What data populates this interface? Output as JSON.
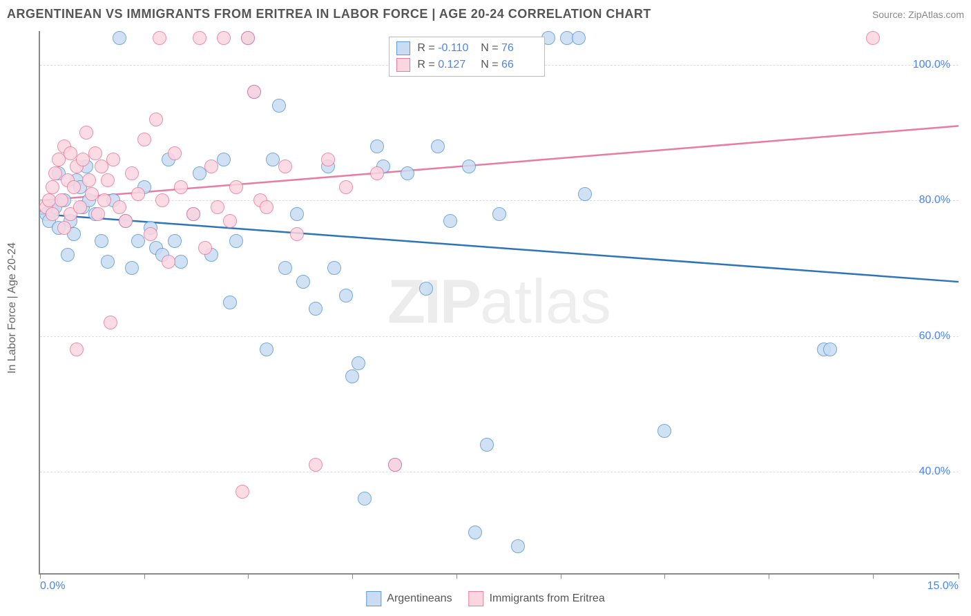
{
  "title": "ARGENTINEAN VS IMMIGRANTS FROM ERITREA IN LABOR FORCE | AGE 20-24 CORRELATION CHART",
  "source": "Source: ZipAtlas.com",
  "watermark": "ZIPatlas",
  "ylabel": "In Labor Force | Age 20-24",
  "chart": {
    "type": "scatter",
    "xlim": [
      0,
      15
    ],
    "ylim": [
      25,
      105
    ],
    "yticks": [
      40,
      60,
      80,
      100
    ],
    "ytick_labels": [
      "40.0%",
      "60.0%",
      "80.0%",
      "100.0%"
    ],
    "xtick_positions": [
      0,
      1.7,
      3.4,
      5.1,
      6.8,
      8.5,
      10.2,
      11.9,
      13.6,
      15
    ],
    "xlabels": {
      "0": "0.0%",
      "15": "15.0%"
    },
    "grid_color": "#dddddd",
    "axis_color": "#888888",
    "background_color": "#ffffff",
    "point_radius": 10,
    "point_stroke_width": 1.5,
    "line_width": 2.5,
    "series": [
      {
        "name": "Argentineans",
        "fill": "#c9dcf3",
        "stroke": "#5b9bd5",
        "line_color": "#2e75b6",
        "R": "-0.110",
        "N": "76",
        "trend": {
          "x1": 0,
          "y1": 78,
          "x2": 15,
          "y2": 68
        },
        "points": [
          [
            0.1,
            78
          ],
          [
            0.15,
            77
          ],
          [
            0.2,
            78.5
          ],
          [
            0.25,
            79
          ],
          [
            0.3,
            76
          ],
          [
            0.3,
            84
          ],
          [
            0.4,
            80
          ],
          [
            0.45,
            72
          ],
          [
            0.5,
            77
          ],
          [
            0.55,
            75
          ],
          [
            0.6,
            83
          ],
          [
            0.65,
            82
          ],
          [
            0.7,
            79
          ],
          [
            0.75,
            85
          ],
          [
            0.8,
            80
          ],
          [
            0.9,
            78
          ],
          [
            1.0,
            74
          ],
          [
            1.1,
            71
          ],
          [
            1.2,
            80
          ],
          [
            1.3,
            104
          ],
          [
            1.4,
            77
          ],
          [
            1.5,
            70
          ],
          [
            1.6,
            74
          ],
          [
            1.7,
            82
          ],
          [
            1.8,
            76
          ],
          [
            1.9,
            73
          ],
          [
            2.0,
            72
          ],
          [
            2.1,
            86
          ],
          [
            2.2,
            74
          ],
          [
            2.3,
            71
          ],
          [
            2.5,
            78
          ],
          [
            2.6,
            84
          ],
          [
            2.8,
            72
          ],
          [
            3.0,
            86
          ],
          [
            3.1,
            65
          ],
          [
            3.2,
            74
          ],
          [
            3.4,
            104
          ],
          [
            3.5,
            96
          ],
          [
            3.7,
            58
          ],
          [
            3.8,
            86
          ],
          [
            3.9,
            94
          ],
          [
            4.0,
            70
          ],
          [
            4.2,
            78
          ],
          [
            4.3,
            68
          ],
          [
            4.5,
            64
          ],
          [
            4.7,
            85
          ],
          [
            4.8,
            70
          ],
          [
            5.0,
            66
          ],
          [
            5.1,
            54
          ],
          [
            5.2,
            56
          ],
          [
            5.3,
            36
          ],
          [
            5.5,
            88
          ],
          [
            5.6,
            85
          ],
          [
            5.8,
            41
          ],
          [
            6.0,
            84
          ],
          [
            6.3,
            67
          ],
          [
            6.5,
            88
          ],
          [
            6.7,
            77
          ],
          [
            7.0,
            85
          ],
          [
            7.1,
            31
          ],
          [
            7.3,
            44
          ],
          [
            7.5,
            78
          ],
          [
            7.8,
            29
          ],
          [
            8.3,
            104
          ],
          [
            8.6,
            104
          ],
          [
            8.8,
            104
          ],
          [
            8.9,
            81
          ],
          [
            10.2,
            46
          ],
          [
            12.8,
            58
          ],
          [
            12.9,
            58
          ]
        ]
      },
      {
        "name": "Immigrants from Eritrea",
        "fill": "#fbd5e0",
        "stroke": "#e87ba3",
        "line_color": "#e87ba3",
        "R": "0.127",
        "N": "66",
        "trend": {
          "x1": 0,
          "y1": 80,
          "x2": 15,
          "y2": 91
        },
        "points": [
          [
            0.1,
            79
          ],
          [
            0.15,
            80
          ],
          [
            0.2,
            82
          ],
          [
            0.2,
            78
          ],
          [
            0.25,
            84
          ],
          [
            0.3,
            86
          ],
          [
            0.35,
            80
          ],
          [
            0.4,
            88
          ],
          [
            0.4,
            76
          ],
          [
            0.45,
            83
          ],
          [
            0.5,
            87
          ],
          [
            0.5,
            78
          ],
          [
            0.55,
            82
          ],
          [
            0.6,
            85
          ],
          [
            0.6,
            58
          ],
          [
            0.65,
            79
          ],
          [
            0.7,
            86
          ],
          [
            0.75,
            90
          ],
          [
            0.8,
            83
          ],
          [
            0.85,
            81
          ],
          [
            0.9,
            87
          ],
          [
            0.95,
            78
          ],
          [
            1.0,
            85
          ],
          [
            1.05,
            80
          ],
          [
            1.1,
            83
          ],
          [
            1.15,
            62
          ],
          [
            1.2,
            86
          ],
          [
            1.3,
            79
          ],
          [
            1.4,
            77
          ],
          [
            1.5,
            84
          ],
          [
            1.6,
            81
          ],
          [
            1.7,
            89
          ],
          [
            1.8,
            75
          ],
          [
            1.9,
            92
          ],
          [
            1.95,
            104
          ],
          [
            2.0,
            80
          ],
          [
            2.1,
            71
          ],
          [
            2.2,
            87
          ],
          [
            2.3,
            82
          ],
          [
            2.5,
            78
          ],
          [
            2.6,
            104
          ],
          [
            2.7,
            73
          ],
          [
            2.8,
            85
          ],
          [
            2.9,
            79
          ],
          [
            3.0,
            104
          ],
          [
            3.1,
            77
          ],
          [
            3.2,
            82
          ],
          [
            3.3,
            37
          ],
          [
            3.4,
            104
          ],
          [
            3.5,
            96
          ],
          [
            3.6,
            80
          ],
          [
            3.7,
            79
          ],
          [
            4.0,
            85
          ],
          [
            4.2,
            75
          ],
          [
            4.5,
            41
          ],
          [
            4.7,
            86
          ],
          [
            5.0,
            82
          ],
          [
            5.5,
            84
          ],
          [
            5.8,
            41
          ],
          [
            13.6,
            104
          ]
        ]
      }
    ]
  },
  "bottom_legend": [
    {
      "label": "Argentineans",
      "fill": "#c9dcf3",
      "stroke": "#5b9bd5"
    },
    {
      "label": "Immigrants from Eritrea",
      "fill": "#fbd5e0",
      "stroke": "#e87ba3"
    }
  ]
}
